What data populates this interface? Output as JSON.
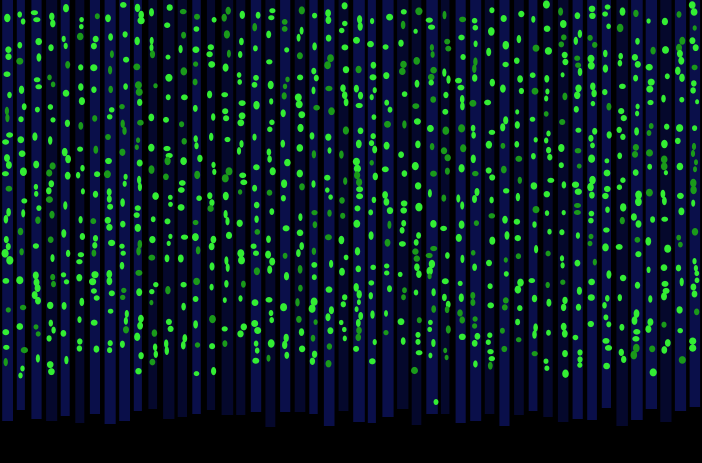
{
  "image": {
    "description_kind": "abstract pattern",
    "colors": {
      "background": "#000000",
      "band": "#0a0f4a",
      "band_dark": "#05082c",
      "dot": "#33ee33",
      "dot_dim": "#1a9a1a"
    },
    "columns_approx": 48,
    "field_coverage_fraction": 0.9
  }
}
